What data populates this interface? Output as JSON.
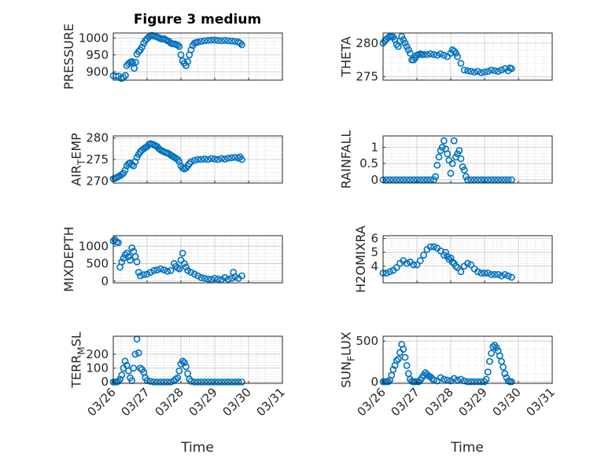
{
  "figure": {
    "title": "Figure 3 medium",
    "xlabel": "Time"
  },
  "colors": {
    "marker": "#0072BD",
    "axis": "#262626",
    "grid": "#c8c8c8"
  },
  "chart_data": [
    {
      "type": "scatter",
      "title": "Figure 3 medium",
      "ylabel": "PRESSURE",
      "ylim": [
        875,
        1015
      ],
      "yticks": [
        900,
        950,
        1000
      ],
      "xlim": [
        0,
        5
      ],
      "xticks": [
        0,
        1,
        2,
        3,
        4,
        5
      ],
      "xticklabels": [
        "03/26",
        "03/27",
        "03/28",
        "03/29",
        "03/30",
        "03/31"
      ],
      "grid": true,
      "x": [
        0,
        0.08,
        0.16,
        0.24,
        0.3,
        0.36,
        0.4,
        0.45,
        0.5,
        0.55,
        0.58,
        0.62,
        0.66,
        0.7,
        0.75,
        0.8,
        0.85,
        0.9,
        0.95,
        1.0,
        1.05,
        1.1,
        1.15,
        1.2,
        1.25,
        1.3,
        1.35,
        1.4,
        1.45,
        1.5,
        1.55,
        1.6,
        1.65,
        1.7,
        1.75,
        1.8,
        1.85,
        1.9,
        1.95,
        2.0,
        2.05,
        2.1,
        2.15,
        2.2,
        2.25,
        2.3,
        2.35,
        2.4,
        2.45,
        2.5,
        2.6,
        2.7,
        2.8,
        2.9,
        3.0,
        3.1,
        3.2,
        3.3,
        3.4,
        3.5,
        3.6,
        3.7,
        3.75,
        3.8
      ],
      "y": [
        888,
        887,
        887,
        880,
        883,
        889,
        918,
        924,
        928,
        930,
        925,
        910,
        928,
        952,
        960,
        965,
        973,
        985,
        993,
        998,
        1003,
        1007,
        1008,
        1006,
        1005,
        1003,
        1001,
        998,
        997,
        998,
        995,
        992,
        990,
        985,
        983,
        983,
        981,
        979,
        975,
        950,
        932,
        925,
        918,
        930,
        950,
        965,
        978,
        985,
        987,
        988,
        990,
        992,
        993,
        994,
        994,
        993,
        992,
        993,
        992,
        991,
        990,
        988,
        985,
        980
      ]
    },
    {
      "type": "scatter",
      "ylabel": "THETA",
      "ylim": [
        274.5,
        281.5
      ],
      "yticks": [
        275,
        280
      ],
      "xlim": [
        0,
        5
      ],
      "xticks": [
        0,
        1,
        2,
        3,
        4,
        5
      ],
      "xticklabels": [
        "03/26",
        "03/27",
        "03/28",
        "03/29",
        "03/30",
        "03/31"
      ],
      "grid": true,
      "x": [
        0,
        0.05,
        0.1,
        0.15,
        0.2,
        0.25,
        0.3,
        0.35,
        0.4,
        0.45,
        0.5,
        0.55,
        0.6,
        0.65,
        0.7,
        0.75,
        0.8,
        0.85,
        0.9,
        0.95,
        1.0,
        1.05,
        1.1,
        1.15,
        1.2,
        1.3,
        1.4,
        1.5,
        1.6,
        1.7,
        1.8,
        1.9,
        2.0,
        2.05,
        2.1,
        2.15,
        2.2,
        2.3,
        2.4,
        2.5,
        2.6,
        2.7,
        2.8,
        2.9,
        3.0,
        3.1,
        3.2,
        3.3,
        3.4,
        3.5,
        3.6,
        3.7,
        3.75,
        3.8
      ],
      "y": [
        280.0,
        280.3,
        280.6,
        280.8,
        281.0,
        281.0,
        280.9,
        280.5,
        279.8,
        279.5,
        280.3,
        281.0,
        280.5,
        280.0,
        279.5,
        279.0,
        278.5,
        277.5,
        277.5,
        277.8,
        278.2,
        278.3,
        278.4,
        278.3,
        278.3,
        278.3,
        278.4,
        278.3,
        278.2,
        278.4,
        278.2,
        278.0,
        278.5,
        279.0,
        278.8,
        278.5,
        278.0,
        277.0,
        276.0,
        275.9,
        275.8,
        275.7,
        275.8,
        275.6,
        275.7,
        275.8,
        276.0,
        275.9,
        275.8,
        276.0,
        276.2,
        275.9,
        276.3,
        276.2
      ]
    },
    {
      "type": "scatter",
      "ylabel": "AIR_TEMP",
      "ylabel_main": "AIR",
      "ylabel_sub": "T",
      "ylabel_tail": "EMP",
      "ylim": [
        269.5,
        280.5
      ],
      "yticks": [
        270,
        275,
        280
      ],
      "xlim": [
        0,
        5
      ],
      "xticks": [
        0,
        1,
        2,
        3,
        4,
        5
      ],
      "xticklabels": [
        "03/26",
        "03/27",
        "03/28",
        "03/29",
        "03/30",
        "03/31"
      ],
      "grid": true,
      "x": [
        0,
        0.05,
        0.1,
        0.15,
        0.2,
        0.25,
        0.3,
        0.35,
        0.4,
        0.45,
        0.5,
        0.55,
        0.6,
        0.65,
        0.7,
        0.75,
        0.8,
        0.85,
        0.9,
        0.95,
        1.0,
        1.05,
        1.1,
        1.15,
        1.2,
        1.25,
        1.3,
        1.35,
        1.4,
        1.45,
        1.5,
        1.55,
        1.6,
        1.65,
        1.7,
        1.75,
        1.8,
        1.85,
        1.9,
        1.95,
        2.0,
        2.05,
        2.1,
        2.15,
        2.2,
        2.25,
        2.3,
        2.4,
        2.5,
        2.6,
        2.7,
        2.8,
        2.9,
        3.0,
        3.1,
        3.2,
        3.3,
        3.4,
        3.5,
        3.6,
        3.7,
        3.75,
        3.8
      ],
      "y": [
        270.5,
        270.6,
        270.8,
        271.0,
        271.2,
        271.5,
        271.8,
        272.5,
        273.5,
        274.0,
        274.2,
        273.8,
        273.5,
        274.5,
        275.5,
        276.2,
        276.8,
        277.2,
        277.5,
        277.8,
        278.0,
        278.5,
        278.7,
        278.6,
        278.4,
        278.2,
        278.0,
        277.5,
        277.2,
        277.0,
        276.8,
        276.6,
        276.5,
        276.3,
        276.0,
        275.8,
        275.5,
        275.3,
        275.0,
        274.5,
        273.5,
        273.0,
        272.8,
        273.0,
        273.5,
        274.0,
        274.5,
        274.8,
        275.0,
        275.0,
        275.1,
        275.0,
        275.2,
        275.1,
        275.0,
        275.2,
        275.1,
        275.3,
        275.4,
        275.5,
        275.3,
        275.6,
        275.0
      ]
    },
    {
      "type": "scatter",
      "ylabel": "RAINFALL",
      "ylim": [
        -0.1,
        1.35
      ],
      "yticks": [
        0,
        0.5,
        1
      ],
      "xlim": [
        0,
        5
      ],
      "xticks": [
        0,
        1,
        2,
        3,
        4,
        5
      ],
      "xticklabels": [
        "03/26",
        "03/27",
        "03/28",
        "03/29",
        "03/30",
        "03/31"
      ],
      "grid": true,
      "x": [
        0,
        0.1,
        0.2,
        0.3,
        0.4,
        0.5,
        0.6,
        0.7,
        0.8,
        0.9,
        1.0,
        1.1,
        1.2,
        1.3,
        1.4,
        1.5,
        1.55,
        1.6,
        1.65,
        1.7,
        1.75,
        1.8,
        1.85,
        1.9,
        1.95,
        2.0,
        2.05,
        2.1,
        2.15,
        2.2,
        2.25,
        2.3,
        2.35,
        2.4,
        2.45,
        2.5,
        2.6,
        2.7,
        2.8,
        2.9,
        3.0,
        3.1,
        3.2,
        3.3,
        3.4,
        3.5,
        3.6,
        3.7,
        3.8
      ],
      "y": [
        0,
        0,
        0,
        0,
        0,
        0,
        0,
        0,
        0,
        0,
        0,
        0,
        0,
        0,
        0,
        0,
        0.1,
        0.45,
        0.7,
        0.9,
        1.0,
        1.2,
        0.95,
        0.8,
        0.6,
        0.2,
        0.5,
        1.2,
        0.7,
        0.8,
        0.9,
        0.65,
        0.4,
        0.3,
        0.1,
        0,
        0,
        0,
        0,
        0,
        0,
        0,
        0,
        0,
        0,
        0,
        0,
        0,
        0
      ]
    },
    {
      "type": "scatter",
      "ylabel": "MIXDEPTH",
      "ylim": [
        -50,
        1300
      ],
      "yticks": [
        0,
        500,
        1000
      ],
      "xlim": [
        0,
        5
      ],
      "xticks": [
        0,
        1,
        2,
        3,
        4,
        5
      ],
      "xticklabels": [
        "03/26",
        "03/27",
        "03/28",
        "03/29",
        "03/30",
        "03/31"
      ],
      "grid": true,
      "x": [
        0,
        0.05,
        0.1,
        0.15,
        0.2,
        0.25,
        0.3,
        0.35,
        0.4,
        0.45,
        0.5,
        0.55,
        0.6,
        0.65,
        0.7,
        0.75,
        0.8,
        0.9,
        1.0,
        1.1,
        1.2,
        1.3,
        1.4,
        1.5,
        1.6,
        1.7,
        1.8,
        1.85,
        1.9,
        1.95,
        2.0,
        2.05,
        2.1,
        2.15,
        2.2,
        2.3,
        2.4,
        2.5,
        2.6,
        2.7,
        2.8,
        2.9,
        3.0,
        3.1,
        3.2,
        3.3,
        3.4,
        3.5,
        3.55,
        3.6,
        3.7,
        3.8
      ],
      "y": [
        1150,
        1180,
        1120,
        1100,
        400,
        550,
        650,
        750,
        800,
        700,
        600,
        950,
        850,
        700,
        550,
        250,
        150,
        180,
        200,
        250,
        300,
        320,
        350,
        320,
        280,
        300,
        500,
        420,
        380,
        350,
        600,
        800,
        500,
        400,
        300,
        250,
        200,
        150,
        100,
        80,
        60,
        50,
        80,
        60,
        40,
        100,
        50,
        80,
        250,
        120,
        80,
        150
      ]
    },
    {
      "type": "scatter",
      "ylabel": "H2OMIXRA",
      "ylim": [
        2.8,
        6.2
      ],
      "yticks": [
        4,
        5,
        6
      ],
      "xlim": [
        0,
        5
      ],
      "xticks": [
        0,
        1,
        2,
        3,
        4,
        5
      ],
      "xticklabels": [
        "03/26",
        "03/27",
        "03/28",
        "03/29",
        "03/30",
        "03/31"
      ],
      "grid": true,
      "x": [
        0,
        0.1,
        0.2,
        0.3,
        0.4,
        0.5,
        0.6,
        0.7,
        0.8,
        0.9,
        1.0,
        1.1,
        1.2,
        1.3,
        1.4,
        1.5,
        1.6,
        1.7,
        1.8,
        1.85,
        1.9,
        1.95,
        2.0,
        2.05,
        2.1,
        2.15,
        2.2,
        2.3,
        2.4,
        2.5,
        2.6,
        2.7,
        2.8,
        2.9,
        3.0,
        3.1,
        3.2,
        3.3,
        3.4,
        3.5,
        3.6,
        3.7,
        3.8
      ],
      "y": [
        3.5,
        3.5,
        3.6,
        3.7,
        3.9,
        4.2,
        4.4,
        4.2,
        4.3,
        4.1,
        4.1,
        4.4,
        4.8,
        5.2,
        5.4,
        5.4,
        5.3,
        5.1,
        4.8,
        5.0,
        4.7,
        4.5,
        4.6,
        4.3,
        4.2,
        4.0,
        3.9,
        3.6,
        4.0,
        4.2,
        4.1,
        3.8,
        3.6,
        3.5,
        3.5,
        3.5,
        3.4,
        3.4,
        3.4,
        3.3,
        3.4,
        3.3,
        3.2
      ]
    },
    {
      "type": "scatter",
      "ylabel": "TERR_MSL",
      "ylabel_main": "TERR",
      "ylabel_sub": "M",
      "ylabel_tail": "SL",
      "ylim": [
        -10,
        330
      ],
      "yticks": [
        0,
        100,
        200
      ],
      "xlim": [
        0,
        5
      ],
      "xticks": [
        0,
        1,
        2,
        3,
        4,
        5
      ],
      "xticklabels": [
        "03/26",
        "03/27",
        "03/28",
        "03/29",
        "03/30",
        "03/31"
      ],
      "grid": true,
      "x": [
        0,
        0.05,
        0.1,
        0.15,
        0.2,
        0.25,
        0.3,
        0.35,
        0.4,
        0.45,
        0.5,
        0.55,
        0.6,
        0.65,
        0.7,
        0.75,
        0.8,
        0.85,
        0.9,
        0.95,
        1.0,
        1.1,
        1.2,
        1.3,
        1.4,
        1.5,
        1.6,
        1.7,
        1.8,
        1.85,
        1.9,
        1.95,
        2.0,
        2.05,
        2.1,
        2.15,
        2.2,
        2.25,
        2.3,
        2.4,
        2.5,
        2.6,
        2.7,
        2.8,
        2.9,
        3.0,
        3.1,
        3.2,
        3.3,
        3.4,
        3.5,
        3.6,
        3.7,
        3.8
      ],
      "y": [
        0,
        0,
        0,
        5,
        20,
        50,
        100,
        150,
        120,
        80,
        30,
        10,
        100,
        200,
        310,
        210,
        100,
        90,
        70,
        30,
        10,
        5,
        0,
        0,
        0,
        0,
        0,
        0,
        10,
        20,
        30,
        80,
        130,
        150,
        140,
        110,
        60,
        20,
        5,
        0,
        0,
        0,
        0,
        0,
        0,
        0,
        0,
        0,
        0,
        0,
        0,
        0,
        0,
        0
      ]
    },
    {
      "type": "scatter",
      "ylabel": "SUN_FLUX",
      "ylabel_main": "SUN",
      "ylabel_sub": "F",
      "ylabel_tail": "LUX",
      "ylim": [
        -20,
        560
      ],
      "yticks": [
        0,
        500
      ],
      "xlim": [
        0,
        5
      ],
      "xticks": [
        0,
        1,
        2,
        3,
        4,
        5
      ],
      "xticklabels": [
        "03/26",
        "03/27",
        "03/28",
        "03/29",
        "03/30",
        "03/31"
      ],
      "grid": true,
      "x": [
        0,
        0.05,
        0.1,
        0.15,
        0.2,
        0.25,
        0.3,
        0.35,
        0.4,
        0.45,
        0.5,
        0.55,
        0.6,
        0.65,
        0.7,
        0.75,
        0.8,
        0.85,
        0.9,
        0.95,
        1.0,
        1.05,
        1.1,
        1.15,
        1.2,
        1.25,
        1.3,
        1.35,
        1.4,
        1.45,
        1.5,
        1.6,
        1.7,
        1.8,
        1.9,
        2.0,
        2.1,
        2.2,
        2.3,
        2.4,
        2.5,
        2.6,
        2.7,
        2.8,
        2.9,
        3.0,
        3.05,
        3.1,
        3.15,
        3.2,
        3.25,
        3.3,
        3.35,
        3.4,
        3.45,
        3.5,
        3.55,
        3.6,
        3.65,
        3.7,
        3.75,
        3.8
      ],
      "y": [
        0,
        0,
        0,
        0,
        20,
        80,
        150,
        200,
        260,
        280,
        360,
        460,
        400,
        300,
        200,
        100,
        30,
        5,
        0,
        0,
        0,
        0,
        20,
        50,
        80,
        110,
        90,
        70,
        60,
        40,
        20,
        10,
        50,
        30,
        20,
        10,
        40,
        20,
        30,
        10,
        0,
        0,
        0,
        0,
        0,
        0,
        30,
        120,
        250,
        350,
        430,
        450,
        420,
        380,
        320,
        250,
        180,
        100,
        50,
        10,
        0,
        0
      ]
    }
  ]
}
